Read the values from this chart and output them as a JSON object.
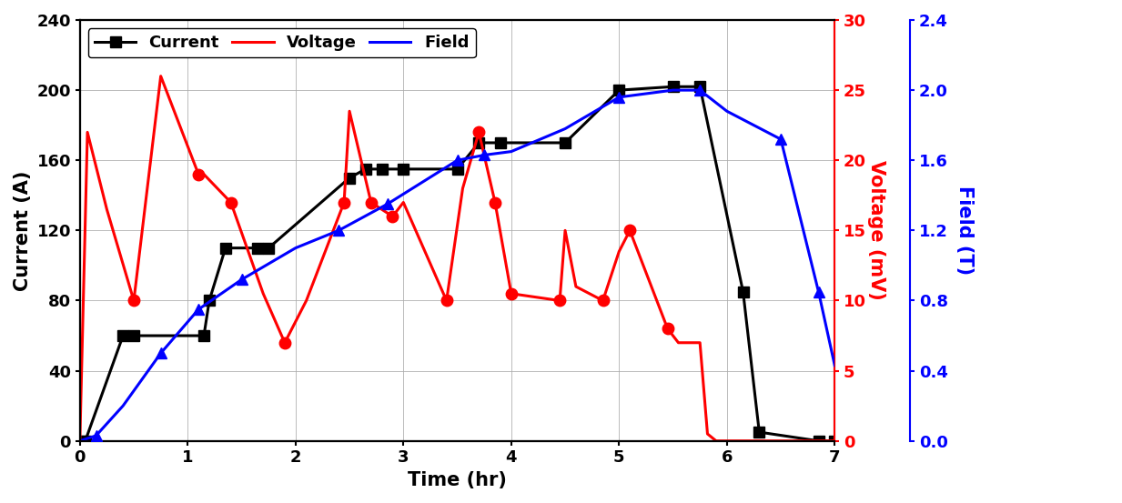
{
  "current_x": [
    0,
    0.05,
    0.4,
    0.5,
    1.15,
    1.2,
    1.35,
    1.65,
    1.75,
    2.5,
    2.65,
    2.8,
    3.0,
    3.5,
    3.7,
    3.9,
    4.5,
    5.0,
    5.5,
    5.75,
    6.15,
    6.3,
    6.85,
    7.0
  ],
  "current_y": [
    0,
    0,
    60,
    60,
    60,
    80,
    110,
    110,
    110,
    150,
    155,
    155,
    155,
    155,
    170,
    170,
    170,
    200,
    202,
    202,
    85,
    5,
    0,
    0
  ],
  "current_marker_x": [
    0.4,
    0.5,
    1.2,
    1.35,
    1.65,
    1.75,
    2.5,
    2.65,
    2.8,
    3.0,
    3.5,
    3.7,
    3.9,
    5.0,
    5.5,
    5.75,
    6.15,
    6.85,
    7.0
  ],
  "current_marker_y": [
    60,
    60,
    80,
    110,
    110,
    110,
    150,
    155,
    155,
    155,
    155,
    170,
    170,
    200,
    202,
    202,
    85,
    0,
    0
  ],
  "voltage_x": [
    0,
    0.07,
    0.25,
    0.5,
    0.75,
    1.1,
    1.15,
    1.4,
    1.7,
    1.9,
    2.1,
    2.45,
    2.5,
    2.7,
    2.9,
    3.0,
    3.4,
    3.55,
    3.7,
    3.85,
    4.0,
    4.45,
    4.5,
    4.6,
    4.85,
    5.0,
    5.1,
    5.45,
    5.55,
    5.75,
    5.82,
    5.9,
    6.85,
    7.0
  ],
  "voltage_y": [
    0,
    22,
    16.5,
    10,
    26,
    19,
    19,
    17,
    10.5,
    7,
    10,
    17,
    23.5,
    17,
    16,
    17,
    10,
    18,
    22,
    17,
    10.5,
    10,
    15,
    11,
    10,
    13.5,
    15,
    8,
    7,
    7,
    0.5,
    0,
    0,
    0
  ],
  "voltage_marker_x": [
    0.5,
    1.1,
    1.4,
    1.9,
    2.45,
    2.7,
    2.9,
    3.4,
    3.7,
    3.85,
    4.0,
    4.45,
    4.85,
    5.1,
    5.45
  ],
  "voltage_marker_y": [
    10,
    19,
    17,
    7,
    17,
    17,
    16,
    10,
    22,
    17,
    10.5,
    10,
    10,
    15,
    8
  ],
  "field_x": [
    0,
    0.15,
    0.4,
    0.75,
    1.1,
    1.5,
    2.0,
    2.4,
    2.85,
    3.5,
    3.75,
    4.0,
    4.5,
    5.0,
    5.5,
    5.75,
    6.0,
    6.5,
    6.85,
    7.0
  ],
  "field_y": [
    0,
    0.03,
    0.2,
    0.5,
    0.75,
    0.92,
    1.1,
    1.2,
    1.35,
    1.6,
    1.63,
    1.65,
    1.78,
    1.96,
    2.0,
    2.0,
    1.88,
    1.72,
    0.85,
    0.43
  ],
  "field_marker_x": [
    0.15,
    0.75,
    1.1,
    1.5,
    2.4,
    2.85,
    3.5,
    3.75,
    5.0,
    5.75,
    6.5,
    6.85
  ],
  "field_marker_y": [
    0.03,
    0.5,
    0.75,
    0.92,
    1.2,
    1.35,
    1.6,
    1.63,
    1.96,
    2.0,
    1.72,
    0.85
  ],
  "current_label": "Current",
  "voltage_label": "Voltage",
  "field_label": "Field",
  "xlabel": "Time (hr)",
  "ylabel_left": "Current (A)",
  "ylabel_right_voltage": "Voltage (mV)",
  "ylabel_right_field": "Field (T)",
  "xlim": [
    0,
    7
  ],
  "ylim_current": [
    0,
    240
  ],
  "ylim_voltage": [
    0,
    30
  ],
  "ylim_field": [
    0,
    2.4
  ],
  "xticks": [
    0,
    1,
    2,
    3,
    4,
    5,
    6,
    7
  ],
  "yticks_current": [
    0,
    40,
    80,
    120,
    160,
    200,
    240
  ],
  "yticks_voltage": [
    0,
    5,
    10,
    15,
    20,
    25,
    30
  ],
  "yticks_field": [
    0.0,
    0.4,
    0.8,
    1.2,
    1.6,
    2.0,
    2.4
  ],
  "bg_color": "#ffffff",
  "grid_color": "#aaaaaa",
  "current_color": "#000000",
  "voltage_color": "#ff0000",
  "field_color": "#0000ff",
  "linewidth": 2.2,
  "markersize": 9,
  "label_fontsize": 15,
  "tick_fontsize": 13,
  "legend_fontsize": 13
}
